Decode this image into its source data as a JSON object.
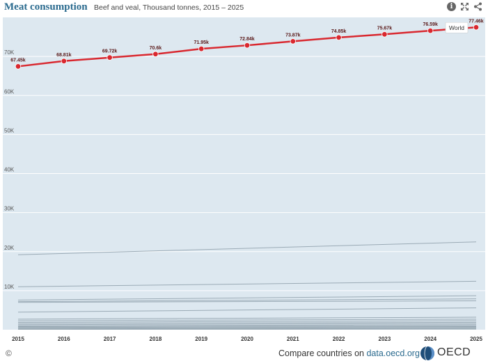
{
  "header": {
    "title": "Meat consumption",
    "subtitle": "Beef and veal, Thousand tonnes, 2015 – 2025",
    "icons": [
      "info-icon",
      "expand-icon",
      "share-icon"
    ],
    "info_glyph": "i"
  },
  "chart_data": {
    "type": "line",
    "title": "Meat consumption",
    "subtitle": "Beef and veal, Thousand tonnes, 2015 – 2025",
    "x": [
      "2015",
      "2016",
      "2017",
      "2018",
      "2019",
      "2020",
      "2021",
      "2022",
      "2023",
      "2024",
      "2025"
    ],
    "ylim": [
      0,
      80000
    ],
    "yticks": [
      10000,
      20000,
      30000,
      40000,
      50000,
      60000,
      70000
    ],
    "ytick_labels": [
      "10K",
      "20K",
      "30K",
      "40K",
      "50K",
      "60K",
      "70K"
    ],
    "grid": true,
    "highlight_series": {
      "name": "World",
      "color": "#d9282f",
      "values": [
        67450,
        68810,
        69720,
        70600,
        71950,
        72840,
        73870,
        74850,
        75670,
        76590,
        77460
      ],
      "labels": [
        "67.45k",
        "68.81k",
        "69.72k",
        "70.6k",
        "71.95k",
        "72.84k",
        "73.87k",
        "74.85k",
        "75.67k",
        "76.59k",
        "77.46k"
      ]
    },
    "background_series": [
      {
        "start": 19200,
        "end": 22500
      },
      {
        "start": 11000,
        "end": 12400
      },
      {
        "start": 7600,
        "end": 8700
      },
      {
        "start": 7200,
        "end": 7900
      },
      {
        "start": 7000,
        "end": 7400
      },
      {
        "start": 4500,
        "end": 5600
      },
      {
        "start": 2700,
        "end": 3200
      },
      {
        "start": 2300,
        "end": 2700
      },
      {
        "start": 1900,
        "end": 2300
      },
      {
        "start": 1600,
        "end": 1900
      },
      {
        "start": 1300,
        "end": 1600
      },
      {
        "start": 1000,
        "end": 1300
      },
      {
        "start": 800,
        "end": 1000
      },
      {
        "start": 600,
        "end": 800
      },
      {
        "start": 400,
        "end": 600
      },
      {
        "start": 250,
        "end": 400
      },
      {
        "start": 150,
        "end": 250
      },
      {
        "start": 80,
        "end": 150
      }
    ],
    "colors": {
      "background": "#dde8f0",
      "grid": "#ffffff",
      "muted_line": "#9aaab5"
    }
  },
  "footer": {
    "copyright": "©",
    "compare_prefix": "Compare countries on ",
    "compare_link": "data.oecd.org",
    "logo_text": "OECD"
  }
}
